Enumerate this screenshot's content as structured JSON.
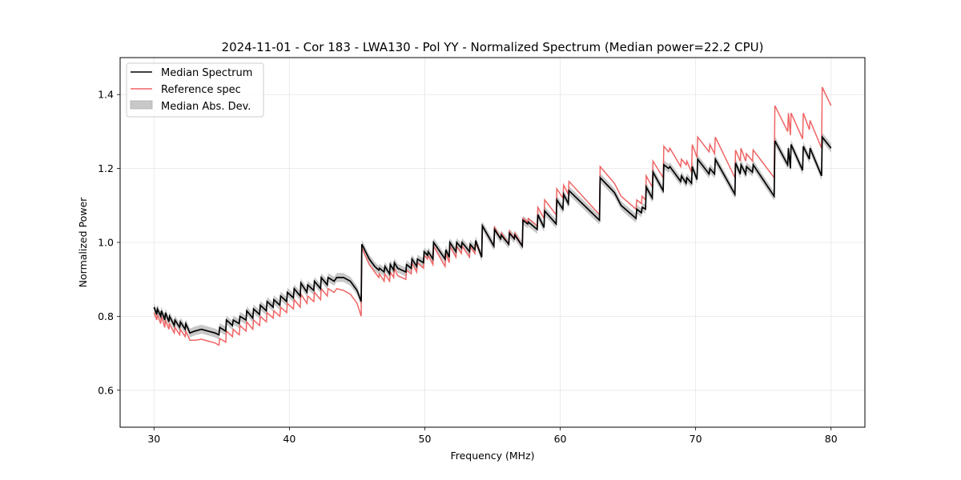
{
  "chart_data": {
    "type": "line",
    "title": "2024-11-01 - Cor 183 - LWA130 - Pol YY - Normalized Spectrum (Median power=22.2 CPU)",
    "xlabel": "Frequency (MHz)",
    "ylabel": "Normalized Power",
    "xlim": [
      27.5,
      82.5
    ],
    "ylim": [
      0.5,
      1.5
    ],
    "xticks": [
      30,
      40,
      50,
      60,
      70,
      80
    ],
    "xtick_labels": [
      "30",
      "40",
      "50",
      "60",
      "70",
      "80"
    ],
    "yticks": [
      0.6,
      0.8,
      1.0,
      1.2,
      1.4
    ],
    "ytick_labels": [
      "0.6",
      "0.8",
      "1.0",
      "1.2",
      "1.4"
    ],
    "grid": true,
    "legend": {
      "position": "top-left",
      "entries": [
        {
          "label": "Median Spectrum",
          "kind": "line",
          "color": "#000000"
        },
        {
          "label": "Reference spec",
          "kind": "line",
          "color": "#f06464"
        },
        {
          "label": "Median Abs. Dev.",
          "kind": "patch",
          "color": "#c8c8c8"
        }
      ]
    },
    "series": [
      {
        "name": "Median Spectrum",
        "color": "#000000",
        "mad": 0.012,
        "x": [
          30.0,
          30.2,
          30.25,
          30.5,
          30.55,
          30.8,
          30.85,
          31.1,
          31.15,
          31.5,
          31.55,
          31.9,
          31.95,
          32.3,
          32.35,
          32.6,
          32.65,
          33.0,
          33.5,
          34.0,
          34.5,
          34.8,
          34.85,
          35.3,
          35.35,
          35.8,
          35.85,
          36.3,
          36.35,
          36.8,
          36.85,
          37.3,
          37.35,
          37.8,
          37.85,
          38.3,
          38.35,
          38.8,
          38.85,
          39.3,
          39.35,
          39.8,
          39.85,
          40.3,
          40.35,
          40.8,
          40.85,
          41.3,
          41.35,
          41.8,
          41.85,
          42.3,
          42.35,
          42.8,
          42.85,
          43.3,
          43.5,
          44.0,
          44.5,
          45.0,
          45.3,
          45.35,
          45.9,
          46.3,
          46.6,
          46.65,
          47.0,
          47.05,
          47.4,
          47.45,
          47.7,
          47.75,
          48.0,
          48.3,
          48.6,
          48.65,
          49.0,
          49.05,
          49.4,
          49.45,
          49.9,
          49.95,
          50.2,
          50.25,
          50.6,
          50.65,
          51.5,
          51.55,
          51.8,
          51.85,
          52.3,
          52.35,
          52.7,
          52.75,
          53.3,
          53.35,
          53.7,
          53.75,
          54.2,
          54.25,
          55.1,
          55.15,
          55.6,
          55.65,
          56.2,
          56.25,
          56.6,
          56.65,
          57.2,
          57.25,
          57.6,
          57.65,
          58.3,
          58.35,
          58.8,
          58.85,
          59.7,
          59.75,
          60.2,
          60.25,
          60.6,
          60.65,
          62.9,
          62.95,
          64.0,
          64.5,
          65.6,
          65.65,
          66.0,
          66.05,
          66.3,
          66.35,
          66.8,
          66.85,
          67.6,
          67.65,
          68.0,
          68.1,
          68.9,
          68.95,
          69.3,
          69.35,
          69.7,
          69.75,
          70.1,
          70.15,
          71.0,
          71.05,
          71.4,
          71.45,
          72.9,
          72.95,
          73.3,
          73.35,
          73.7,
          73.75,
          74.2,
          74.25,
          75.8,
          75.85,
          76.8,
          76.85,
          77.0,
          77.05,
          77.9,
          77.95,
          78.4,
          78.45,
          79.3,
          79.35,
          80.0
        ],
        "y": [
          0.825,
          0.805,
          0.82,
          0.8,
          0.815,
          0.79,
          0.81,
          0.785,
          0.8,
          0.775,
          0.79,
          0.77,
          0.785,
          0.765,
          0.78,
          0.76,
          0.755,
          0.76,
          0.765,
          0.76,
          0.755,
          0.75,
          0.77,
          0.76,
          0.79,
          0.775,
          0.79,
          0.78,
          0.8,
          0.79,
          0.815,
          0.795,
          0.82,
          0.805,
          0.83,
          0.815,
          0.84,
          0.825,
          0.845,
          0.83,
          0.855,
          0.84,
          0.865,
          0.85,
          0.875,
          0.855,
          0.89,
          0.865,
          0.885,
          0.87,
          0.895,
          0.875,
          0.905,
          0.885,
          0.905,
          0.895,
          0.905,
          0.905,
          0.895,
          0.87,
          0.84,
          0.995,
          0.955,
          0.935,
          0.925,
          0.93,
          0.92,
          0.935,
          0.915,
          0.94,
          0.925,
          0.945,
          0.93,
          0.925,
          0.92,
          0.94,
          0.93,
          0.955,
          0.935,
          0.955,
          0.945,
          0.975,
          0.965,
          0.975,
          0.955,
          1.0,
          0.955,
          0.98,
          0.96,
          1.0,
          0.975,
          1.0,
          0.985,
          1.0,
          0.975,
          0.995,
          0.98,
          1.005,
          0.96,
          1.045,
          0.99,
          1.035,
          1.01,
          1.02,
          0.995,
          1.025,
          1.01,
          1.02,
          0.99,
          1.06,
          1.05,
          1.055,
          1.035,
          1.075,
          1.04,
          1.085,
          1.05,
          1.115,
          1.09,
          1.13,
          1.105,
          1.14,
          1.06,
          1.175,
          1.135,
          1.1,
          1.065,
          1.09,
          1.08,
          1.095,
          1.09,
          1.15,
          1.12,
          1.19,
          1.14,
          1.21,
          1.2,
          1.205,
          1.165,
          1.18,
          1.16,
          1.175,
          1.16,
          1.205,
          1.17,
          1.225,
          1.185,
          1.2,
          1.185,
          1.225,
          1.13,
          1.215,
          1.185,
          1.21,
          1.185,
          1.205,
          1.19,
          1.21,
          1.125,
          1.275,
          1.21,
          1.255,
          1.2,
          1.265,
          1.195,
          1.26,
          1.225,
          1.255,
          1.18,
          1.285,
          1.255
        ]
      },
      {
        "name": "Reference spec",
        "color": "#f06464",
        "x": [
          30.0,
          30.2,
          30.25,
          30.5,
          30.55,
          30.8,
          30.85,
          31.1,
          31.15,
          31.5,
          31.55,
          31.9,
          31.95,
          32.3,
          32.35,
          32.6,
          32.65,
          33.0,
          33.5,
          34.0,
          34.5,
          34.8,
          34.85,
          35.3,
          35.35,
          35.8,
          35.85,
          36.3,
          36.35,
          36.8,
          36.85,
          37.3,
          37.35,
          37.8,
          37.85,
          38.3,
          38.35,
          38.8,
          38.85,
          39.3,
          39.35,
          39.8,
          39.85,
          40.3,
          40.35,
          40.8,
          40.85,
          41.3,
          41.35,
          41.8,
          41.85,
          42.3,
          42.35,
          42.8,
          42.85,
          43.3,
          43.5,
          44.0,
          44.5,
          45.0,
          45.3,
          45.35,
          45.9,
          46.3,
          46.6,
          46.65,
          47.0,
          47.05,
          47.4,
          47.45,
          47.7,
          47.75,
          48.0,
          48.3,
          48.6,
          48.65,
          49.0,
          49.05,
          49.4,
          49.45,
          49.9,
          49.95,
          50.2,
          50.25,
          50.6,
          50.65,
          51.5,
          51.55,
          51.8,
          51.85,
          52.3,
          52.35,
          52.7,
          52.75,
          53.3,
          53.35,
          53.7,
          53.75,
          54.2,
          54.25,
          55.1,
          55.15,
          55.6,
          55.65,
          56.2,
          56.25,
          56.6,
          56.65,
          57.2,
          57.25,
          57.6,
          57.65,
          58.3,
          58.35,
          58.8,
          58.85,
          59.7,
          59.75,
          60.2,
          60.25,
          60.6,
          60.65,
          62.9,
          62.95,
          64.0,
          64.5,
          65.6,
          65.65,
          66.0,
          66.05,
          66.3,
          66.35,
          66.8,
          66.85,
          67.6,
          67.65,
          68.0,
          68.1,
          68.9,
          68.95,
          69.3,
          69.35,
          69.7,
          69.75,
          70.1,
          70.15,
          71.0,
          71.05,
          71.4,
          71.45,
          72.9,
          72.95,
          73.3,
          73.35,
          73.7,
          73.75,
          74.2,
          74.25,
          75.8,
          75.85,
          76.8,
          76.85,
          77.0,
          77.05,
          77.9,
          77.95,
          78.4,
          78.45,
          79.3,
          79.35,
          80.0
        ],
        "y": [
          0.81,
          0.79,
          0.805,
          0.78,
          0.8,
          0.77,
          0.79,
          0.765,
          0.78,
          0.755,
          0.77,
          0.75,
          0.765,
          0.745,
          0.76,
          0.74,
          0.735,
          0.735,
          0.738,
          0.733,
          0.728,
          0.722,
          0.74,
          0.73,
          0.76,
          0.745,
          0.765,
          0.75,
          0.775,
          0.76,
          0.785,
          0.765,
          0.79,
          0.775,
          0.8,
          0.785,
          0.81,
          0.795,
          0.815,
          0.8,
          0.825,
          0.81,
          0.835,
          0.82,
          0.845,
          0.825,
          0.86,
          0.835,
          0.855,
          0.84,
          0.865,
          0.845,
          0.875,
          0.855,
          0.875,
          0.865,
          0.875,
          0.87,
          0.86,
          0.835,
          0.8,
          0.985,
          0.94,
          0.92,
          0.905,
          0.915,
          0.895,
          0.915,
          0.895,
          0.92,
          0.905,
          0.93,
          0.91,
          0.905,
          0.9,
          0.925,
          0.915,
          0.945,
          0.92,
          0.945,
          0.93,
          0.965,
          0.955,
          0.965,
          0.94,
          0.99,
          0.935,
          0.97,
          0.945,
          0.99,
          0.96,
          0.99,
          0.97,
          0.99,
          0.96,
          0.99,
          0.97,
          1.0,
          0.96,
          1.045,
          0.99,
          1.04,
          1.01,
          1.025,
          0.995,
          1.03,
          1.01,
          1.025,
          0.99,
          1.065,
          1.055,
          1.065,
          1.045,
          1.095,
          1.065,
          1.115,
          1.075,
          1.145,
          1.12,
          1.155,
          1.13,
          1.165,
          1.075,
          1.205,
          1.16,
          1.125,
          1.09,
          1.115,
          1.105,
          1.125,
          1.115,
          1.18,
          1.15,
          1.22,
          1.175,
          1.26,
          1.245,
          1.255,
          1.205,
          1.225,
          1.21,
          1.22,
          1.19,
          1.265,
          1.23,
          1.285,
          1.245,
          1.265,
          1.24,
          1.285,
          1.175,
          1.25,
          1.22,
          1.255,
          1.22,
          1.24,
          1.22,
          1.25,
          1.175,
          1.37,
          1.3,
          1.35,
          1.29,
          1.35,
          1.28,
          1.35,
          1.305,
          1.33,
          1.255,
          1.42,
          1.37
        ]
      }
    ]
  }
}
